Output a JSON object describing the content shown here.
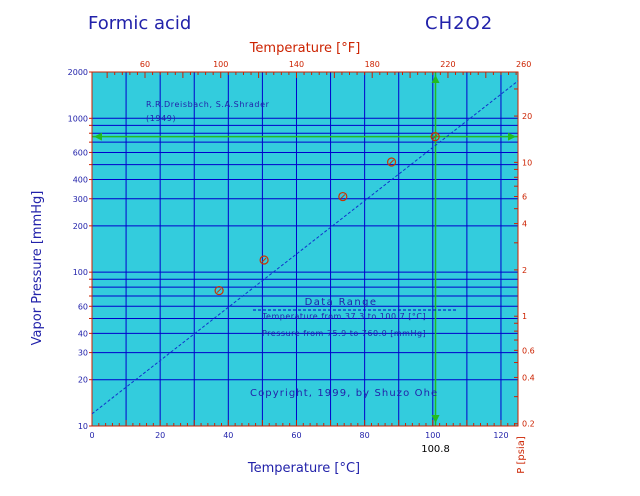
{
  "header": {
    "title": "Formic acid",
    "formula": "CH2O2"
  },
  "chart_data": {
    "type": "line",
    "x_bottom": {
      "label": "Temperature [°C]",
      "range": [
        0,
        125
      ],
      "ticks": [
        0,
        20,
        40,
        60,
        80,
        100,
        120
      ]
    },
    "x_top": {
      "label": "Temperature [°F]",
      "ticks": [
        60,
        100,
        140,
        180,
        220,
        260
      ]
    },
    "y_left": {
      "label": "Vapor Pressure  [mmHg]",
      "scale": "log",
      "range": [
        10,
        2000
      ],
      "ticks": [
        10,
        20,
        30,
        40,
        60,
        100,
        200,
        300,
        400,
        600,
        1000,
        2000
      ]
    },
    "y_right": {
      "label": "P [psia]",
      "scale": "log",
      "ticks": [
        0.2,
        0.4,
        0.6,
        1,
        2,
        4,
        6,
        10,
        20
      ]
    },
    "series": [
      {
        "name": "",
        "points": [
          [
            37.3,
            75.9
          ],
          [
            50.5,
            120
          ],
          [
            73.6,
            310
          ],
          [
            87.9,
            520
          ],
          [
            100.7,
            760
          ]
        ]
      }
    ],
    "fit_line": [
      [
        0,
        12
      ],
      [
        125,
        1750
      ]
    ],
    "boiling_point": {
      "x": 100.8,
      "label": "100.8",
      "pressure": 760
    },
    "annotations": {
      "source_line1": "R.R.Dreisbach, S.A.Shrader",
      "source_line2": "(1949)",
      "data_range_title": "Data Range",
      "temp_range": "Temperature from 37.3 to 100.7 [°C]",
      "pressure_range": "Pressure from 75.9 to 760.0 [mmHg]",
      "copyright": "Copyright, 1999, by Shuzo Ohe"
    },
    "grid": true,
    "colors": {
      "background": "#33ccdd",
      "grid": "#0000cc",
      "text": "#2222aa",
      "accent": "#cc2200",
      "fit": "#1133cc",
      "marker": "#cc3300",
      "boiling": "#22bb22"
    }
  }
}
